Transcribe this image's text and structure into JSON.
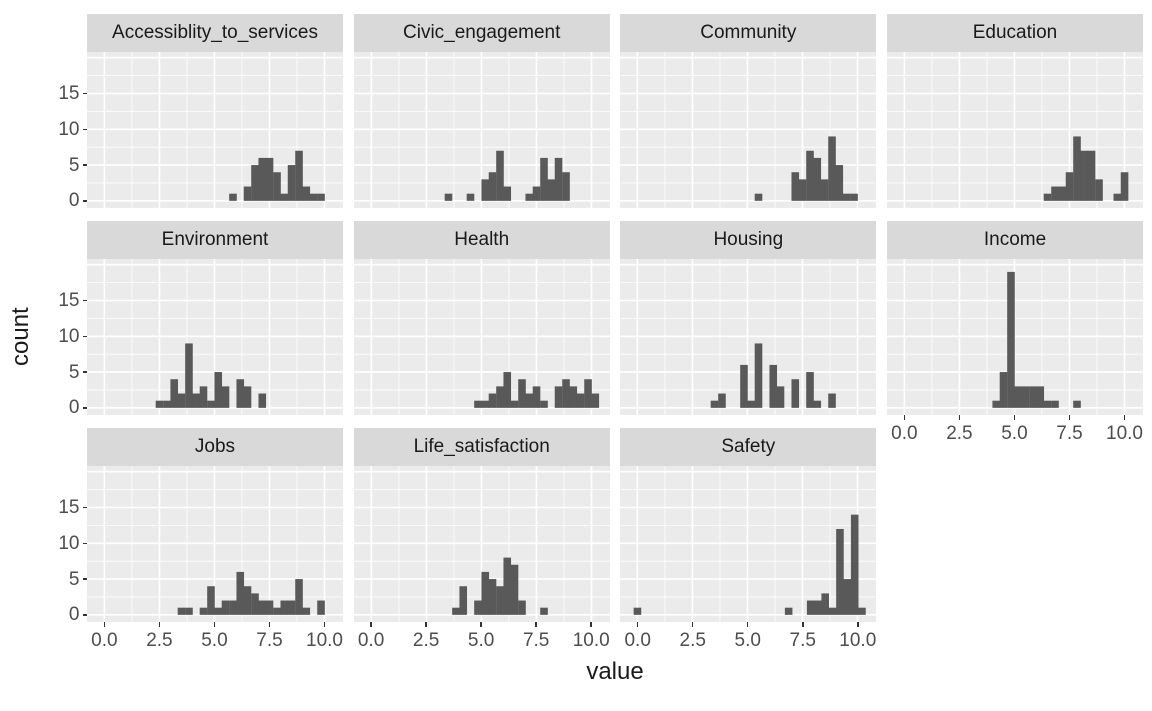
{
  "chart_data": {
    "type": "bar",
    "subtype": "faceted_histogram",
    "title": "",
    "xlabel": "value",
    "ylabel": "count",
    "binwidth": 0.3333,
    "legend": "none",
    "grid": true,
    "xlim": [
      -0.79,
      10.84
    ],
    "ylim": [
      -1,
      20.8
    ],
    "x_ticks": [
      0,
      2.5,
      5,
      7.5,
      10
    ],
    "x_tick_labels": [
      "0.0",
      "2.5",
      "5.0",
      "7.5",
      "10.0"
    ],
    "x_minor_ticks": [
      1.25,
      3.75,
      6.25,
      8.75
    ],
    "y_ticks": [
      0,
      5,
      10,
      15
    ],
    "y_tick_labels": [
      "0",
      "5",
      "10",
      "15"
    ],
    "y_major_gridlines": [
      0,
      5,
      10,
      15,
      20
    ],
    "y_minor_gridlines": [
      2.5,
      7.5,
      12.5,
      17.5
    ],
    "facets": [
      {
        "label": "Accessiblity_to_services",
        "bars": [
          [
            5.67,
            1
          ],
          [
            6.33,
            2
          ],
          [
            6.67,
            5
          ],
          [
            7,
            6
          ],
          [
            7.33,
            6
          ],
          [
            7.67,
            4
          ],
          [
            8,
            1
          ],
          [
            8.33,
            5
          ],
          [
            8.67,
            7
          ],
          [
            9,
            2
          ],
          [
            9.33,
            1
          ],
          [
            9.67,
            1
          ]
        ]
      },
      {
        "label": "Civic_engagement",
        "bars": [
          [
            3.33,
            1
          ],
          [
            4.33,
            1
          ],
          [
            5,
            3
          ],
          [
            5.33,
            4
          ],
          [
            5.67,
            7
          ],
          [
            6,
            2
          ],
          [
            7,
            1
          ],
          [
            7.33,
            2
          ],
          [
            7.67,
            6
          ],
          [
            8,
            3
          ],
          [
            8.33,
            6
          ],
          [
            8.67,
            4
          ]
        ]
      },
      {
        "label": "Community",
        "bars": [
          [
            5.33,
            1
          ],
          [
            7,
            4
          ],
          [
            7.33,
            3
          ],
          [
            7.67,
            7
          ],
          [
            8,
            6
          ],
          [
            8.33,
            3
          ],
          [
            8.67,
            9
          ],
          [
            9,
            5
          ],
          [
            9.33,
            1
          ],
          [
            9.67,
            1
          ]
        ]
      },
      {
        "label": "Education",
        "bars": [
          [
            6.33,
            1
          ],
          [
            6.67,
            2
          ],
          [
            7,
            2
          ],
          [
            7.33,
            4
          ],
          [
            7.67,
            9
          ],
          [
            8,
            7
          ],
          [
            8.33,
            7
          ],
          [
            8.67,
            3
          ],
          [
            9.5,
            1
          ],
          [
            9.83,
            4
          ]
        ]
      },
      {
        "label": "Environment",
        "bars": [
          [
            2.33,
            1
          ],
          [
            2.67,
            1
          ],
          [
            3,
            4
          ],
          [
            3.33,
            2
          ],
          [
            3.67,
            9
          ],
          [
            4,
            2
          ],
          [
            4.33,
            3
          ],
          [
            4.67,
            1
          ],
          [
            5,
            5
          ],
          [
            5.33,
            3
          ],
          [
            6,
            4
          ],
          [
            6.33,
            3
          ],
          [
            7,
            2
          ]
        ]
      },
      {
        "label": "Health",
        "bars": [
          [
            4.67,
            1
          ],
          [
            5,
            1
          ],
          [
            5.33,
            2
          ],
          [
            5.67,
            3
          ],
          [
            6,
            5
          ],
          [
            6.33,
            1
          ],
          [
            6.67,
            4
          ],
          [
            7,
            2
          ],
          [
            7.33,
            3
          ],
          [
            7.67,
            1
          ],
          [
            8.33,
            3
          ],
          [
            8.67,
            4
          ],
          [
            9,
            3
          ],
          [
            9.33,
            2
          ],
          [
            9.67,
            4
          ],
          [
            10,
            2
          ]
        ]
      },
      {
        "label": "Housing",
        "bars": [
          [
            3.33,
            1
          ],
          [
            3.67,
            2
          ],
          [
            4.67,
            6
          ],
          [
            5,
            1
          ],
          [
            5.33,
            9
          ],
          [
            6,
            6
          ],
          [
            6.33,
            3
          ],
          [
            7,
            4
          ],
          [
            7.67,
            5
          ],
          [
            8,
            1
          ],
          [
            8.67,
            2
          ]
        ]
      },
      {
        "label": "Income",
        "bars": [
          [
            4,
            1
          ],
          [
            4.33,
            5
          ],
          [
            4.67,
            19
          ],
          [
            5,
            3
          ],
          [
            5.33,
            3
          ],
          [
            5.67,
            3
          ],
          [
            6,
            3
          ],
          [
            6.33,
            1
          ],
          [
            6.67,
            1
          ],
          [
            7.67,
            1
          ]
        ]
      },
      {
        "label": "Jobs",
        "bars": [
          [
            3.33,
            1
          ],
          [
            3.67,
            1
          ],
          [
            4.33,
            1
          ],
          [
            4.67,
            4
          ],
          [
            5,
            1
          ],
          [
            5.33,
            2
          ],
          [
            5.67,
            2
          ],
          [
            6,
            6
          ],
          [
            6.33,
            4
          ],
          [
            6.67,
            3
          ],
          [
            7,
            2
          ],
          [
            7.33,
            2
          ],
          [
            7.67,
            1
          ],
          [
            8,
            2
          ],
          [
            8.33,
            2
          ],
          [
            8.67,
            5
          ],
          [
            9,
            1
          ],
          [
            9.67,
            2
          ]
        ]
      },
      {
        "label": "Life_satisfaction",
        "bars": [
          [
            3.67,
            1
          ],
          [
            4,
            4
          ],
          [
            4.67,
            2
          ],
          [
            5,
            6
          ],
          [
            5.33,
            5
          ],
          [
            5.67,
            4
          ],
          [
            6,
            8
          ],
          [
            6.33,
            7
          ],
          [
            6.67,
            2
          ],
          [
            7.67,
            1
          ]
        ]
      },
      {
        "label": "Safety",
        "bars": [
          [
            -0.17,
            1
          ],
          [
            6.7,
            1
          ],
          [
            7.7,
            2
          ],
          [
            8.03,
            2
          ],
          [
            8.36,
            3
          ],
          [
            8.7,
            1
          ],
          [
            9.03,
            12
          ],
          [
            9.36,
            5
          ],
          [
            9.7,
            14
          ],
          [
            10.03,
            1
          ]
        ]
      }
    ]
  },
  "style": {
    "bar_color": "#595959",
    "panel_bg": "#EBEBEB",
    "strip_bg": "#D9D9D9",
    "grid_color": "#FFFFFF",
    "tick_color": "#333333",
    "tick_label_color": "#4D4D4D",
    "title_color": "#1A1A1A",
    "strip_text_color": "#1A1A1A",
    "background": "#FFFFFF"
  }
}
